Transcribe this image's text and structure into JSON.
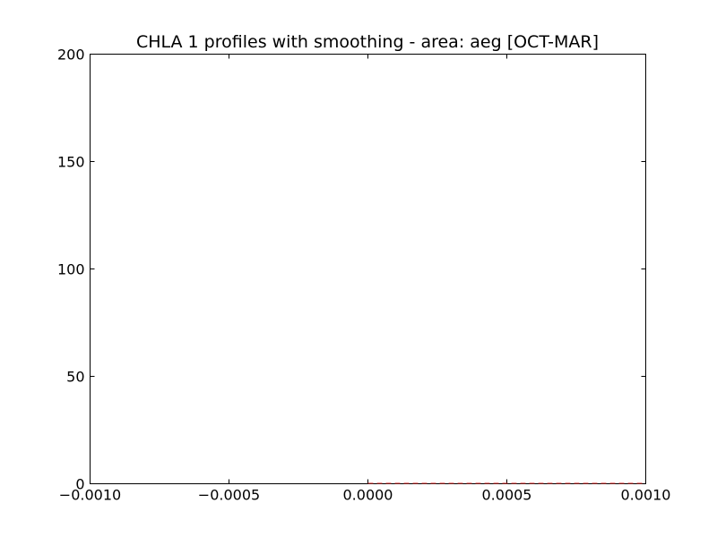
{
  "chart_data": {
    "type": "line",
    "title": "CHLA 1 profiles with smoothing - area: aeg [OCT-MAR]",
    "xlabel": "",
    "ylabel": "",
    "xlim": [
      -0.001,
      0.001
    ],
    "ylim": [
      0,
      200
    ],
    "x_ticks": [
      -0.001,
      -0.0005,
      0.0,
      0.0005,
      0.001
    ],
    "x_tick_labels": [
      "−0.0010",
      "−0.0005",
      "0.0000",
      "0.0005",
      "0.0010"
    ],
    "y_ticks": [
      0,
      50,
      100,
      150,
      200
    ],
    "y_tick_labels": [
      "0",
      "50",
      "100",
      "150",
      "200"
    ],
    "grid": false,
    "series": [
      {
        "line_style": "dashed",
        "color": "#d62728",
        "x": [
          0.0,
          0.001
        ],
        "y": [
          0,
          0
        ]
      }
    ]
  }
}
